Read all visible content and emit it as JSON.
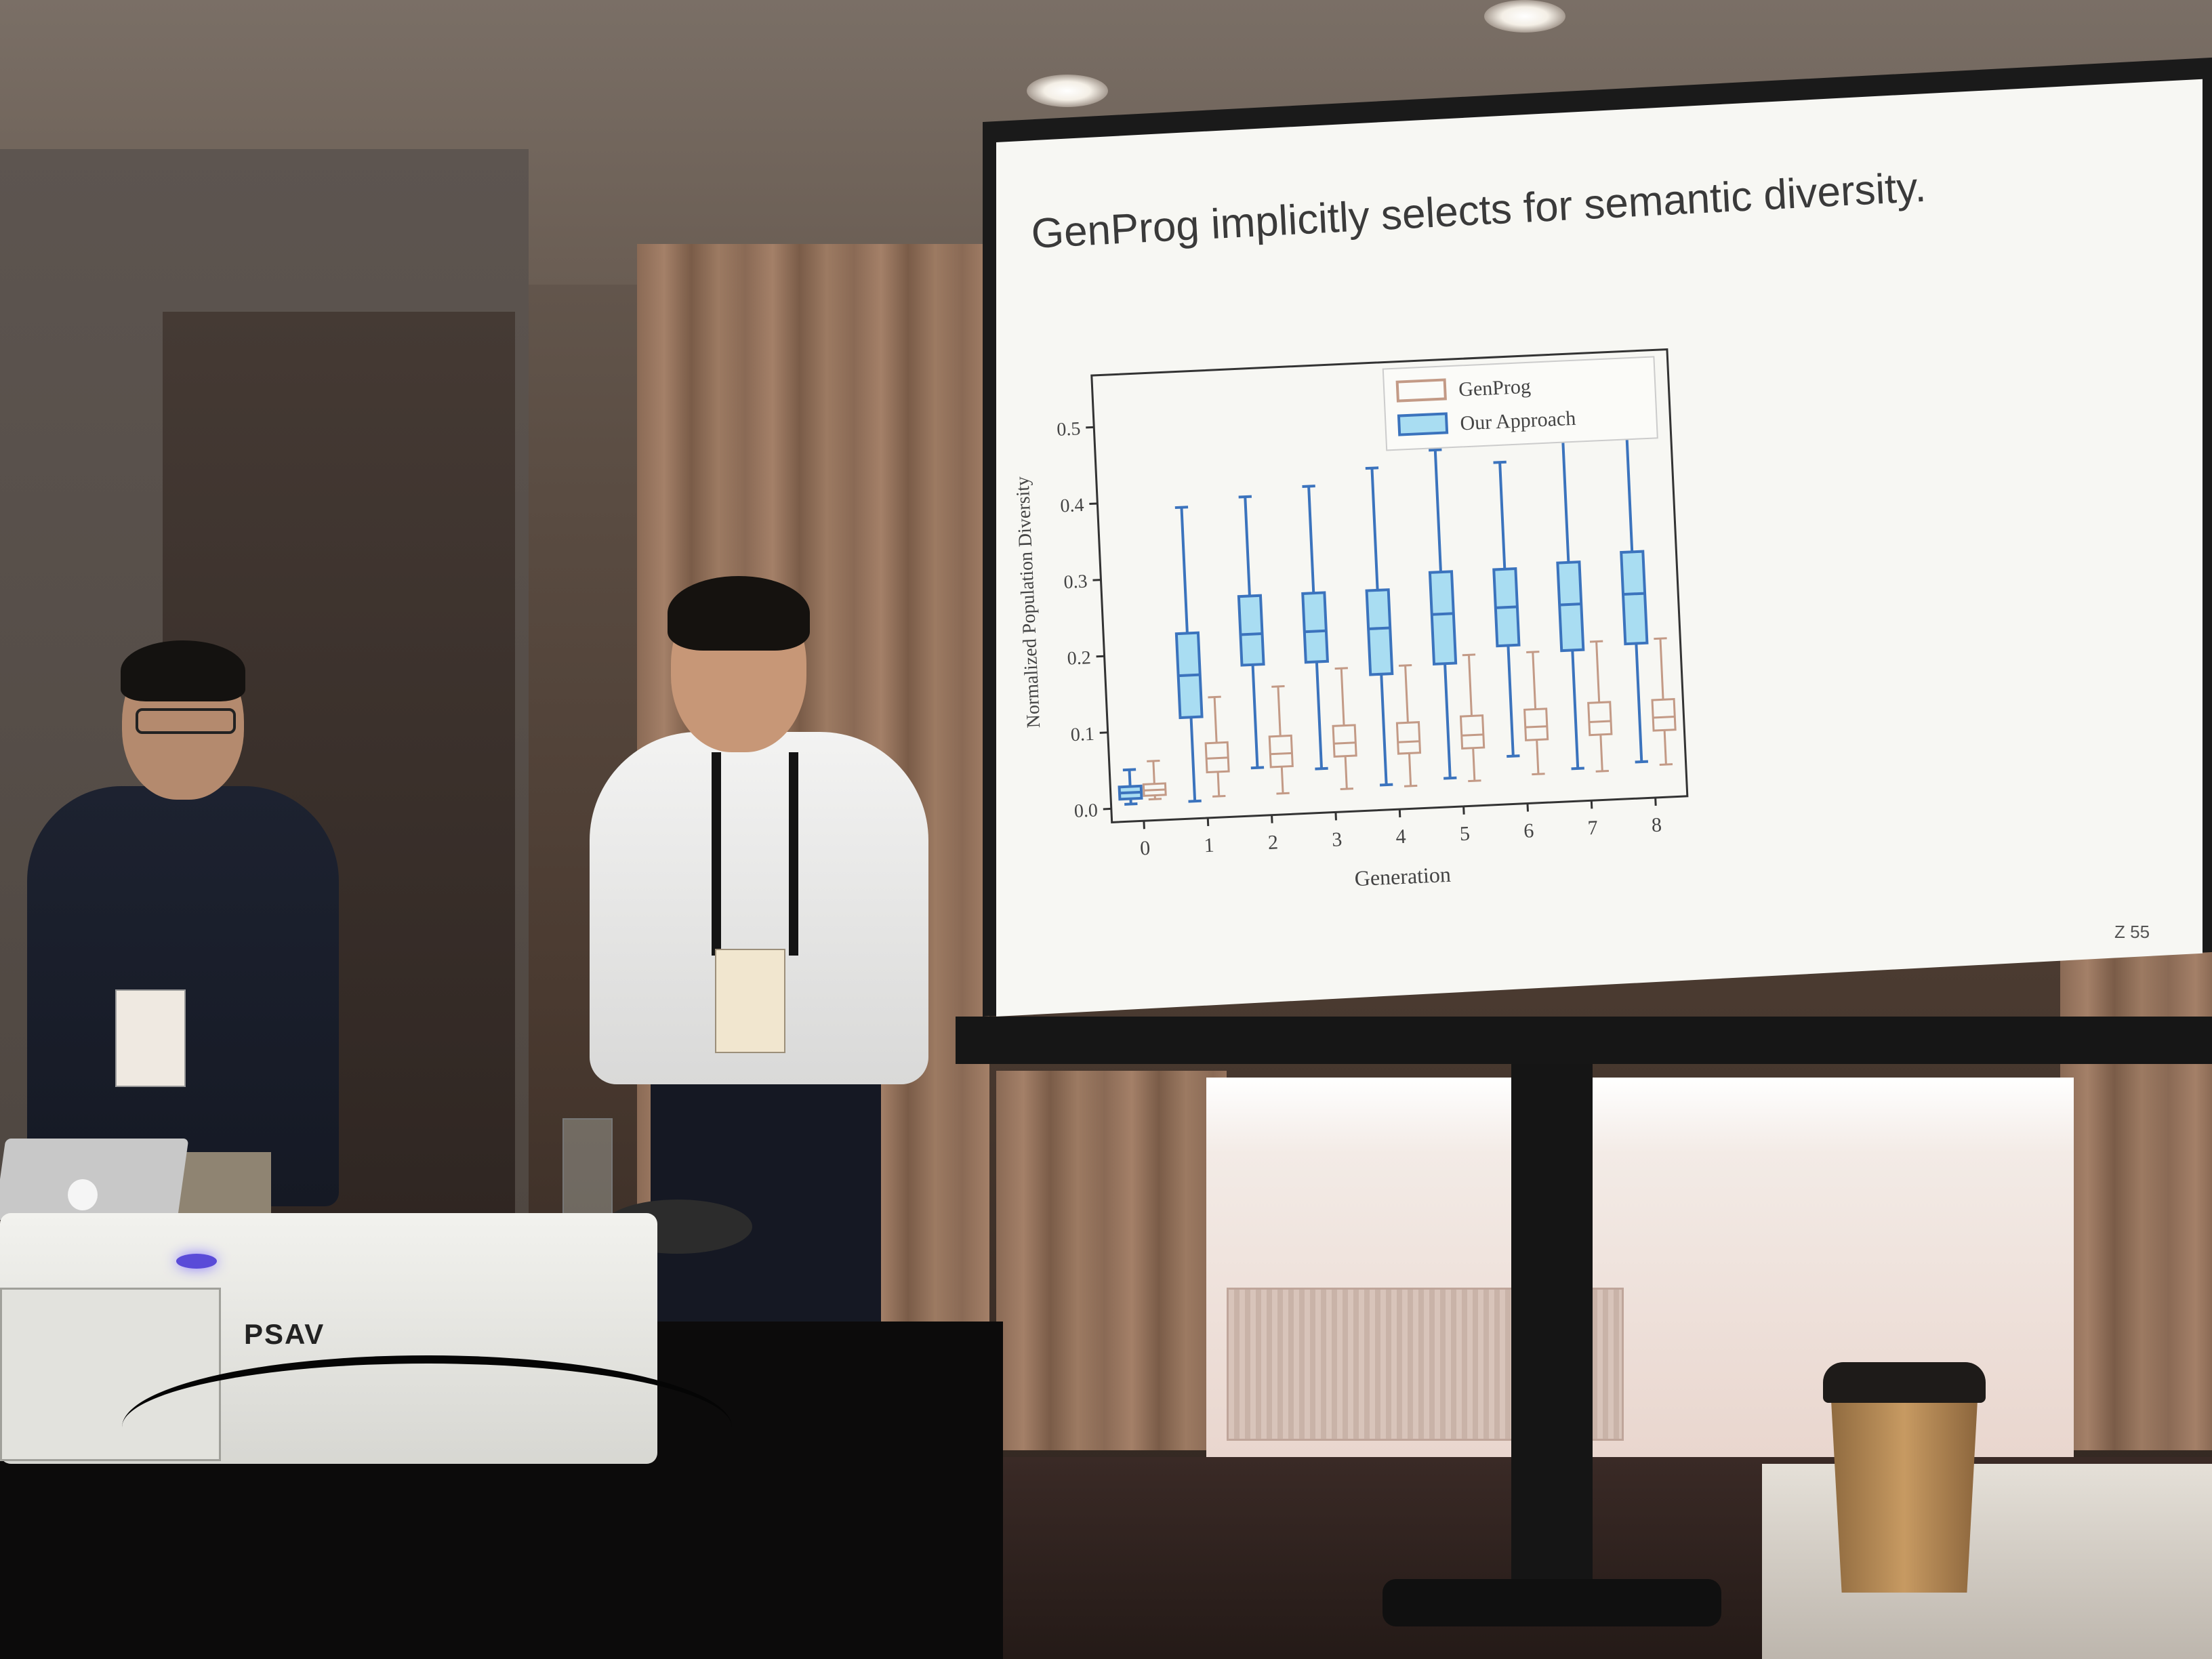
{
  "slide": {
    "title": "GenProg implicitly selects for semantic diversity.",
    "page_number": "Z 55"
  },
  "projector": {
    "brand": "PSAV"
  },
  "chart_data": {
    "type": "boxplot",
    "xlabel": "Generation",
    "ylabel": "Normalized Population Diversity",
    "ylim": [
      0.0,
      0.55
    ],
    "yticks": [
      "0.0",
      "0.1",
      "0.2",
      "0.3",
      "0.4",
      "0.5"
    ],
    "categories": [
      "0",
      "1",
      "2",
      "3",
      "4",
      "5",
      "6",
      "7",
      "8"
    ],
    "legend": {
      "position": "top-right",
      "entries": [
        "GenProg",
        "Our Approach"
      ]
    },
    "colors": {
      "GenProg": "#c39a86",
      "Our Approach": "#3b73bd",
      "Our Approach_fill": "#a9ddf2"
    },
    "series": [
      {
        "name": "GenProg",
        "boxes": [
          {
            "whislo": 0.01,
            "q1": 0.015,
            "med": 0.022,
            "q3": 0.03,
            "whishi": 0.06
          },
          {
            "whislo": 0.01,
            "q1": 0.042,
            "med": 0.06,
            "q3": 0.08,
            "whishi": 0.14
          },
          {
            "whislo": 0.01,
            "q1": 0.045,
            "med": 0.062,
            "q3": 0.085,
            "whishi": 0.15
          },
          {
            "whislo": 0.012,
            "q1": 0.055,
            "med": 0.072,
            "q3": 0.095,
            "whishi": 0.17
          },
          {
            "whislo": 0.012,
            "q1": 0.055,
            "med": 0.07,
            "q3": 0.095,
            "whishi": 0.17
          },
          {
            "whislo": 0.015,
            "q1": 0.058,
            "med": 0.075,
            "q3": 0.1,
            "whishi": 0.18
          },
          {
            "whislo": 0.02,
            "q1": 0.065,
            "med": 0.082,
            "q3": 0.105,
            "whishi": 0.18
          },
          {
            "whislo": 0.02,
            "q1": 0.068,
            "med": 0.085,
            "q3": 0.11,
            "whishi": 0.19
          },
          {
            "whislo": 0.025,
            "q1": 0.07,
            "med": 0.087,
            "q3": 0.11,
            "whishi": 0.19
          }
        ]
      },
      {
        "name": "Our Approach",
        "boxes": [
          {
            "whislo": 0.005,
            "q1": 0.012,
            "med": 0.02,
            "q3": 0.028,
            "whishi": 0.05
          },
          {
            "whislo": 0.005,
            "q1": 0.115,
            "med": 0.17,
            "q3": 0.225,
            "whishi": 0.39
          },
          {
            "whislo": 0.045,
            "q1": 0.18,
            "med": 0.22,
            "q3": 0.27,
            "whishi": 0.4
          },
          {
            "whislo": 0.04,
            "q1": 0.18,
            "med": 0.22,
            "q3": 0.27,
            "whishi": 0.41
          },
          {
            "whislo": 0.015,
            "q1": 0.16,
            "med": 0.22,
            "q3": 0.27,
            "whishi": 0.43
          },
          {
            "whislo": 0.02,
            "q1": 0.17,
            "med": 0.235,
            "q3": 0.29,
            "whishi": 0.45
          },
          {
            "whislo": 0.045,
            "q1": 0.19,
            "med": 0.24,
            "q3": 0.29,
            "whishi": 0.43
          },
          {
            "whislo": 0.025,
            "q1": 0.18,
            "med": 0.24,
            "q3": 0.295,
            "whishi": 0.46
          },
          {
            "whislo": 0.03,
            "q1": 0.185,
            "med": 0.25,
            "q3": 0.305,
            "whishi": 0.47
          }
        ]
      }
    ]
  }
}
